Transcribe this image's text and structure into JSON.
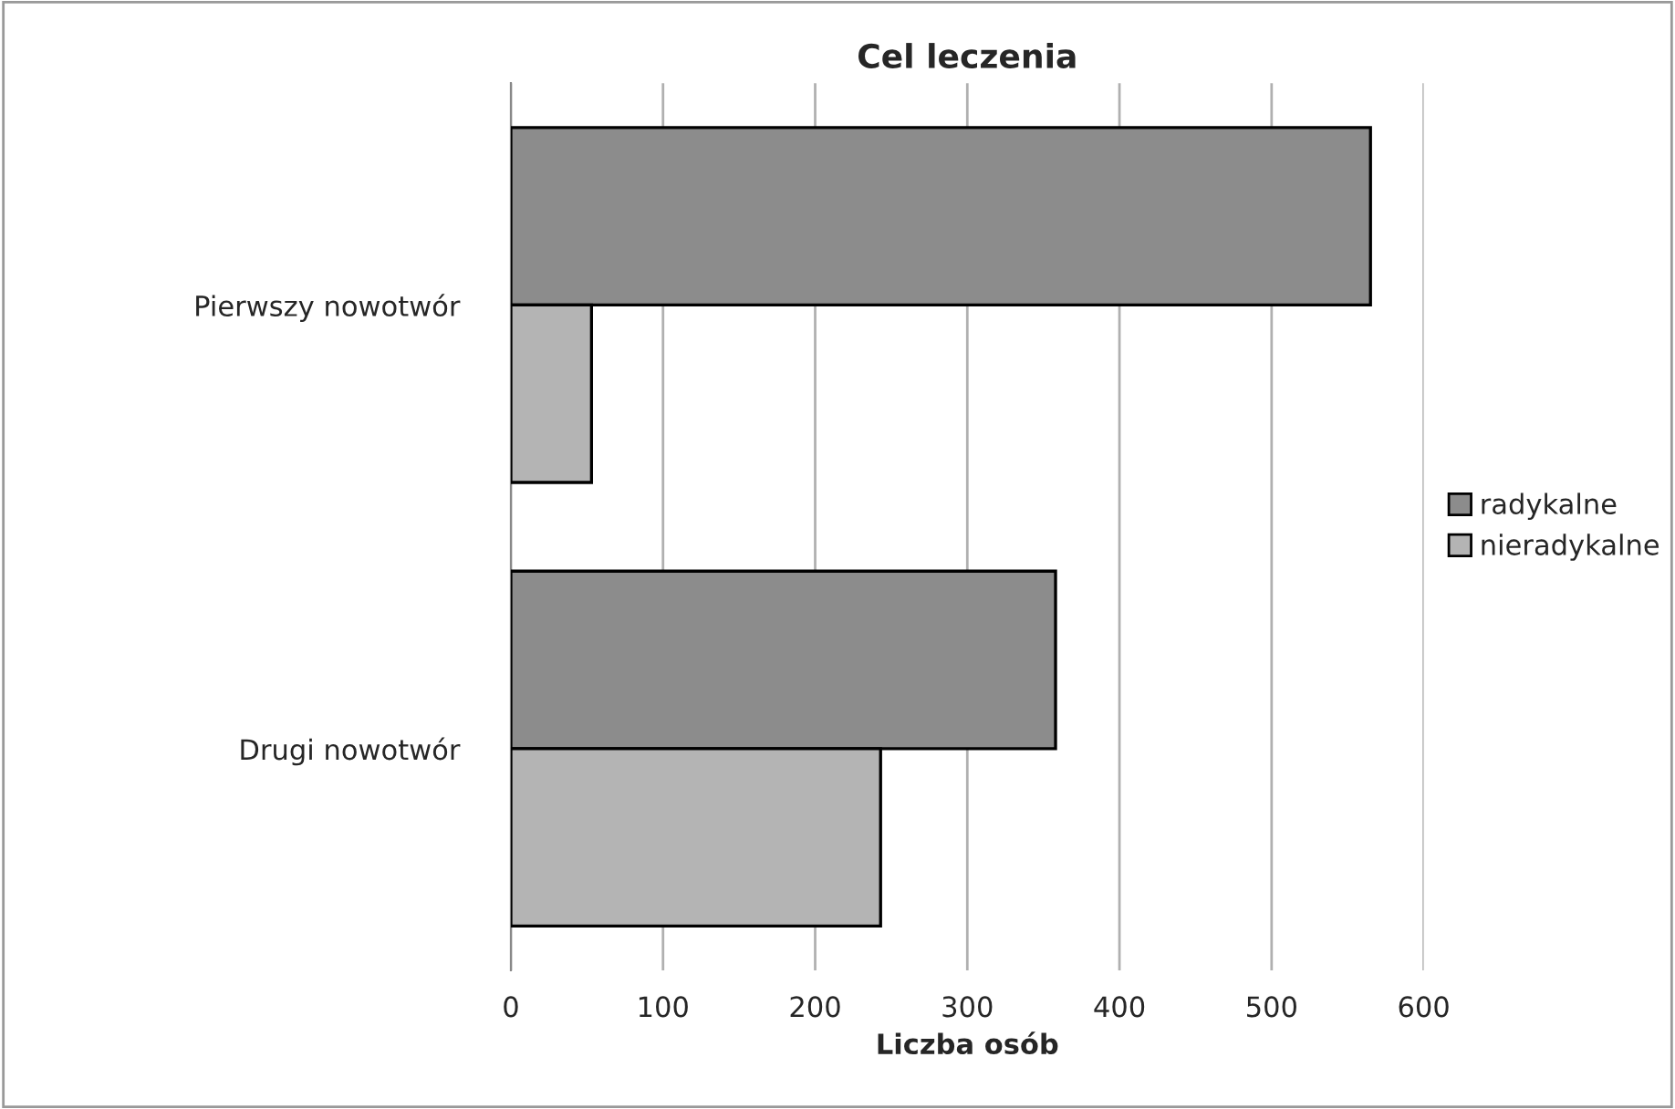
{
  "chart_data": {
    "type": "bar",
    "orientation": "horizontal",
    "title": "Cel leczenia",
    "xlabel": "Liczba osób",
    "categories": [
      "Pierwszy nowotwór",
      "Drugi nowotwór"
    ],
    "series": [
      {
        "name": "radykalne",
        "color": "#8c8c8c",
        "values": [
          565,
          358
        ]
      },
      {
        "name": "nieradykalne",
        "color": "#b4b4b4",
        "values": [
          53,
          243
        ]
      }
    ],
    "xlim": [
      0,
      600
    ],
    "xticks": [
      0,
      100,
      200,
      300,
      400,
      500,
      600
    ],
    "grid": "x",
    "legend": "right"
  }
}
